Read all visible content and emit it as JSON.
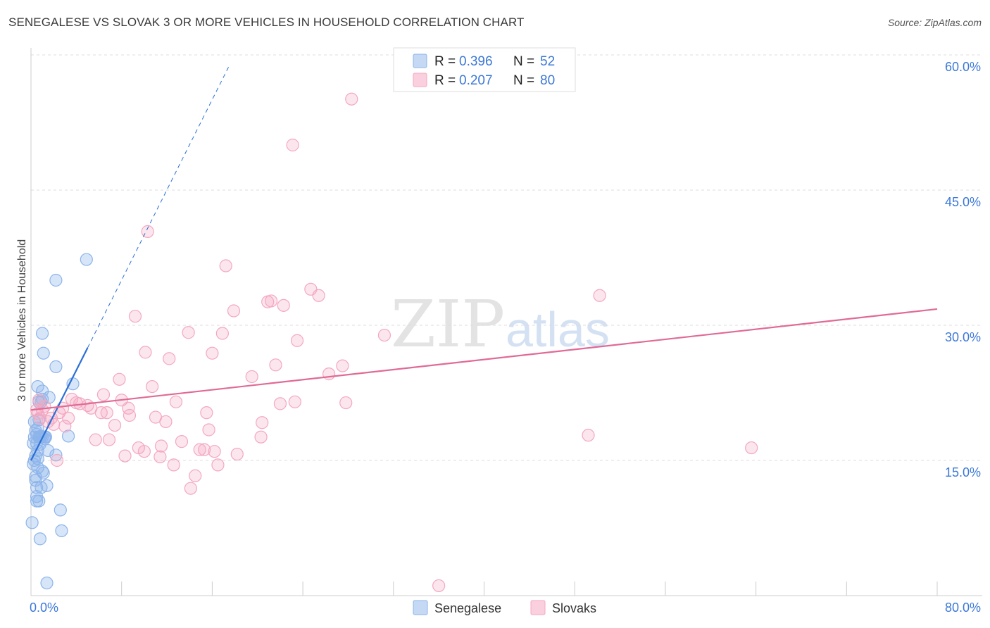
{
  "header": {
    "title": "SENEGALESE VS SLOVAK 3 OR MORE VEHICLES IN HOUSEHOLD CORRELATION CHART",
    "source": "Source: ZipAtlas.com"
  },
  "watermark": {
    "zip": "ZIP",
    "atlas": "atlas"
  },
  "legend_top": [
    {
      "r_label": "R = ",
      "r_value": "0.396",
      "n_label": "N = ",
      "n_value": "52",
      "color": "#8db4ea"
    },
    {
      "r_label": "R = ",
      "r_value": "0.207",
      "n_label": "N = ",
      "n_value": "80",
      "color": "#f4a7c0"
    }
  ],
  "chart_data": {
    "type": "scatter",
    "title": "SENEGALESE VS SLOVAK 3 OR MORE VEHICLES IN HOUSEHOLD CORRELATION CHART",
    "xlabel": "",
    "ylabel": "3 or more Vehicles in Household",
    "xlim": [
      0,
      80
    ],
    "ylim": [
      0,
      60
    ],
    "x_tick_labels": [
      "0.0%",
      "80.0%"
    ],
    "y_ticks": [
      15,
      30,
      45,
      60
    ],
    "y_tick_labels": [
      "15.0%",
      "30.0%",
      "45.0%",
      "60.0%"
    ],
    "grid": true,
    "legend": [
      {
        "name": "Senegalese",
        "color": "#8db4ea"
      },
      {
        "name": "Slovaks",
        "color": "#f4a7c0"
      }
    ],
    "series": [
      {
        "name": "Senegalese",
        "color": "#8db4ea",
        "line_color": "#2a6fd6",
        "R": 0.396,
        "N": 52,
        "trend": {
          "x0": 0.0,
          "y0": 15.0,
          "x1": 5.0,
          "y1": 27.5,
          "dash_to_x": 17.5,
          "dash_to_y": 58.8
        },
        "points": [
          [
            0.1,
            8.1
          ],
          [
            0.2,
            14.6
          ],
          [
            0.2,
            16.9
          ],
          [
            0.3,
            17.6
          ],
          [
            0.3,
            19.3
          ],
          [
            0.4,
            15.5
          ],
          [
            0.4,
            12.8
          ],
          [
            0.4,
            13.2
          ],
          [
            0.5,
            11.0
          ],
          [
            0.5,
            10.5
          ],
          [
            0.5,
            16.9
          ],
          [
            0.5,
            17.9
          ],
          [
            0.5,
            12.0
          ],
          [
            0.6,
            14.2
          ],
          [
            0.6,
            15.2
          ],
          [
            0.6,
            18.6
          ],
          [
            0.6,
            23.2
          ],
          [
            0.7,
            21.5
          ],
          [
            0.7,
            17.6
          ],
          [
            0.7,
            10.5
          ],
          [
            0.8,
            16.8
          ],
          [
            0.8,
            6.3
          ],
          [
            0.8,
            17.6
          ],
          [
            0.9,
            12.0
          ],
          [
            0.9,
            21.5
          ],
          [
            1.0,
            17.6
          ],
          [
            1.0,
            21.8
          ],
          [
            1.0,
            29.1
          ],
          [
            1.0,
            22.7
          ],
          [
            1.1,
            26.9
          ],
          [
            1.1,
            13.6
          ],
          [
            1.2,
            17.6
          ],
          [
            1.2,
            17.4
          ],
          [
            1.3,
            17.6
          ],
          [
            1.4,
            12.2
          ],
          [
            1.4,
            1.4
          ],
          [
            1.5,
            16.1
          ],
          [
            1.6,
            22.0
          ],
          [
            2.2,
            25.4
          ],
          [
            2.2,
            35.0
          ],
          [
            2.2,
            15.6
          ],
          [
            2.6,
            9.5
          ],
          [
            2.7,
            7.2
          ],
          [
            3.3,
            17.7
          ],
          [
            3.7,
            23.5
          ],
          [
            4.9,
            37.3
          ],
          [
            0.3,
            15.0
          ],
          [
            0.6,
            16.1
          ],
          [
            0.9,
            17.7
          ],
          [
            0.4,
            18.3
          ],
          [
            0.7,
            19.5
          ],
          [
            1.0,
            13.8
          ]
        ]
      },
      {
        "name": "Slovaks",
        "color": "#f4a7c0",
        "line_color": "#e06a96",
        "R": 0.207,
        "N": 80,
        "trend": {
          "x0": 0.0,
          "y0": 20.6,
          "x1": 80.0,
          "y1": 31.8
        },
        "points": [
          [
            0.5,
            20.6
          ],
          [
            0.6,
            20.2
          ],
          [
            0.8,
            19.7
          ],
          [
            1.0,
            20.6
          ],
          [
            1.2,
            21.0
          ],
          [
            1.5,
            19.3
          ],
          [
            1.8,
            19.7
          ],
          [
            2.0,
            19.0
          ],
          [
            2.5,
            20.3
          ],
          [
            2.8,
            20.8
          ],
          [
            3.0,
            18.8
          ],
          [
            3.3,
            19.7
          ],
          [
            3.6,
            21.8
          ],
          [
            4.0,
            21.4
          ],
          [
            4.3,
            21.3
          ],
          [
            5.0,
            21.1
          ],
          [
            5.3,
            20.8
          ],
          [
            5.7,
            17.3
          ],
          [
            6.2,
            20.3
          ],
          [
            6.4,
            22.3
          ],
          [
            6.7,
            20.3
          ],
          [
            6.9,
            17.3
          ],
          [
            7.4,
            18.9
          ],
          [
            7.8,
            24.0
          ],
          [
            8.0,
            21.7
          ],
          [
            8.3,
            15.5
          ],
          [
            8.6,
            20.8
          ],
          [
            8.7,
            20.0
          ],
          [
            9.2,
            31.0
          ],
          [
            9.5,
            16.4
          ],
          [
            10.0,
            16.0
          ],
          [
            10.1,
            27.0
          ],
          [
            10.3,
            40.4
          ],
          [
            10.7,
            23.2
          ],
          [
            11.0,
            19.8
          ],
          [
            11.4,
            15.4
          ],
          [
            11.5,
            16.6
          ],
          [
            11.9,
            19.3
          ],
          [
            12.2,
            26.3
          ],
          [
            12.6,
            14.5
          ],
          [
            12.8,
            21.5
          ],
          [
            13.3,
            17.1
          ],
          [
            13.9,
            29.2
          ],
          [
            14.1,
            11.9
          ],
          [
            14.5,
            13.3
          ],
          [
            14.9,
            16.2
          ],
          [
            15.3,
            16.2
          ],
          [
            15.5,
            20.3
          ],
          [
            15.7,
            18.4
          ],
          [
            16.0,
            26.9
          ],
          [
            16.2,
            16.0
          ],
          [
            16.5,
            14.5
          ],
          [
            16.9,
            29.1
          ],
          [
            17.2,
            36.6
          ],
          [
            17.9,
            31.6
          ],
          [
            18.2,
            15.7
          ],
          [
            19.5,
            24.3
          ],
          [
            20.4,
            19.2
          ],
          [
            20.3,
            17.6
          ],
          [
            20.9,
            32.6
          ],
          [
            21.2,
            32.7
          ],
          [
            21.6,
            25.6
          ],
          [
            22.0,
            21.3
          ],
          [
            22.3,
            32.2
          ],
          [
            23.3,
            21.5
          ],
          [
            23.5,
            28.3
          ],
          [
            24.7,
            34.0
          ],
          [
            25.4,
            33.3
          ],
          [
            26.3,
            24.6
          ],
          [
            27.5,
            25.5
          ],
          [
            27.8,
            21.4
          ],
          [
            28.3,
            55.1
          ],
          [
            23.1,
            50.0
          ],
          [
            31.2,
            28.9
          ],
          [
            36.0,
            1.1
          ],
          [
            49.2,
            17.8
          ],
          [
            50.2,
            33.3
          ],
          [
            63.6,
            16.4
          ],
          [
            2.3,
            15.0
          ],
          [
            0.7,
            21.7
          ]
        ]
      }
    ]
  }
}
